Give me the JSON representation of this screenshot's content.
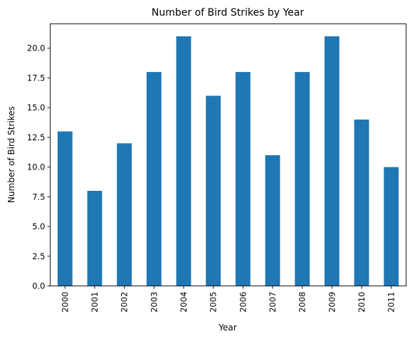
{
  "chart_data": {
    "type": "bar",
    "title": "Number of Bird Strikes by Year",
    "xlabel": "Year",
    "ylabel": "Number of Bird Strikes",
    "categories": [
      "2000",
      "2001",
      "2002",
      "2003",
      "2004",
      "2005",
      "2006",
      "2007",
      "2008",
      "2009",
      "2010",
      "2011"
    ],
    "values": [
      13,
      8,
      12,
      18,
      21,
      16,
      18,
      11,
      18,
      21,
      14,
      10
    ],
    "ylim": [
      0,
      22.05
    ],
    "yticks": [
      "0.0",
      "2.5",
      "5.0",
      "7.5",
      "10.0",
      "12.5",
      "15.0",
      "17.5",
      "20.0"
    ],
    "bar_color": "#1f77b4",
    "grid": false,
    "legend": "none"
  }
}
